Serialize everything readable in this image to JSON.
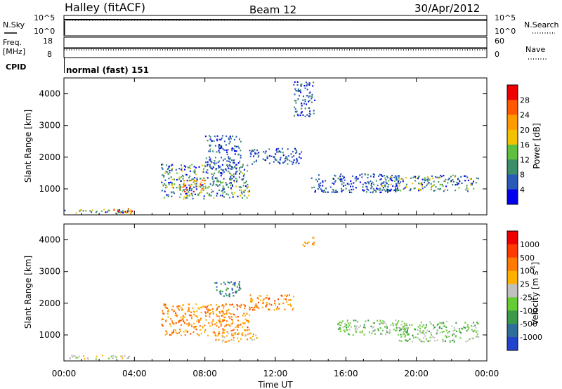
{
  "header": {
    "station": "Halley (fitACF)",
    "beam": "Beam 12",
    "date": "30/Apr/2012"
  },
  "strips": {
    "nsky_label": "N.Sky",
    "nsearch_label": "N.Search",
    "nsky_ticks": [
      "10^5",
      "10^0"
    ],
    "nsearch_ticks": [
      "10^5",
      "10^0"
    ],
    "freq_label": "Freq.",
    "freq_unit": "[MHz]",
    "freq_ticks": [
      "18",
      "8"
    ],
    "nave_label": "Nave",
    "nave_ticks": [
      "60",
      "0"
    ],
    "cpid_label": "CPID",
    "cpid_value": "normal (fast) 151"
  },
  "chart_data": [
    {
      "type": "heatmap",
      "name": "power",
      "ylabel": "Slant Range [km]",
      "xlabel": "",
      "ylim": [
        180,
        4500
      ],
      "yticks": [
        "4000",
        "3000",
        "2000",
        "1000"
      ],
      "xlim": [
        0,
        24
      ],
      "xticks": [
        "00:00",
        "04:00",
        "08:00",
        "12:00",
        "16:00",
        "20:00",
        "00:00"
      ],
      "colorbar": {
        "label": "Power [dB]",
        "ticks": [
          "28",
          "24",
          "20",
          "16",
          "12",
          "8",
          "4"
        ],
        "colors": [
          "#0000ee",
          "#2a5ab8",
          "#3c8e6a",
          "#5fbf40",
          "#f2c200",
          "#ff9a00",
          "#ff5a00",
          "#ee0000"
        ]
      },
      "echo_regions": [
        {
          "t": [
            0.0,
            3.8
          ],
          "r": [
            250,
            380
          ],
          "level": "medium"
        },
        {
          "t": [
            2.8,
            4.0
          ],
          "r": [
            240,
            420
          ],
          "level": "high"
        },
        {
          "t": [
            5.5,
            10.5
          ],
          "r": [
            700,
            1800
          ],
          "level": "medium"
        },
        {
          "t": [
            6.5,
            8.0
          ],
          "r": [
            900,
            1300
          ],
          "level": "high"
        },
        {
          "t": [
            8.0,
            10.0
          ],
          "r": [
            1600,
            2700
          ],
          "level": "low"
        },
        {
          "t": [
            10.5,
            13.5
          ],
          "r": [
            1800,
            2300
          ],
          "level": "low"
        },
        {
          "t": [
            13.0,
            14.2
          ],
          "r": [
            3300,
            4400
          ],
          "level": "low"
        },
        {
          "t": [
            14.0,
            19.0
          ],
          "r": [
            900,
            1500
          ],
          "level": "low"
        },
        {
          "t": [
            18.0,
            23.5
          ],
          "r": [
            950,
            1450
          ],
          "level": "medium"
        }
      ]
    },
    {
      "type": "heatmap",
      "name": "velocity",
      "ylabel": "Slant Range [km]",
      "xlabel": "Time UT",
      "ylim": [
        180,
        4500
      ],
      "yticks": [
        "4000",
        "3000",
        "2000",
        "1000"
      ],
      "xlim": [
        0,
        24
      ],
      "xticks": [
        "00:00",
        "04:00",
        "08:00",
        "12:00",
        "16:00",
        "20:00",
        "00:00"
      ],
      "colorbar": {
        "label": "Velocity [m s",
        "label_superscript": "-1",
        "label_end": "]",
        "ticks": [
          "1000",
          "500",
          "100",
          "25",
          "-25",
          "-100",
          "-500",
          "-1000"
        ],
        "colors": [
          "#2244cc",
          "#2e6e9a",
          "#3a9a4a",
          "#66cc33",
          "#c0c0c0",
          "#ffb000",
          "#ff7a00",
          "#ff3a00",
          "#ee0000"
        ]
      },
      "echo_regions": [
        {
          "t": [
            0.0,
            3.8
          ],
          "r": [
            250,
            380
          ],
          "level": "ground"
        },
        {
          "t": [
            5.5,
            10.5
          ],
          "r": [
            1000,
            2000
          ],
          "level": "away"
        },
        {
          "t": [
            8.5,
            11.0
          ],
          "r": [
            800,
            1100
          ],
          "level": "slow-away"
        },
        {
          "t": [
            8.5,
            10.0
          ],
          "r": [
            2200,
            2700
          ],
          "level": "toward"
        },
        {
          "t": [
            10.5,
            13.0
          ],
          "r": [
            1800,
            2300
          ],
          "level": "away"
        },
        {
          "t": [
            13.5,
            14.2
          ],
          "r": [
            3800,
            4100
          ],
          "level": "away"
        },
        {
          "t": [
            15.5,
            19.5
          ],
          "r": [
            1000,
            1500
          ],
          "level": "slow-toward"
        },
        {
          "t": [
            19.0,
            23.5
          ],
          "r": [
            800,
            1450
          ],
          "level": "slow-toward"
        }
      ]
    }
  ]
}
